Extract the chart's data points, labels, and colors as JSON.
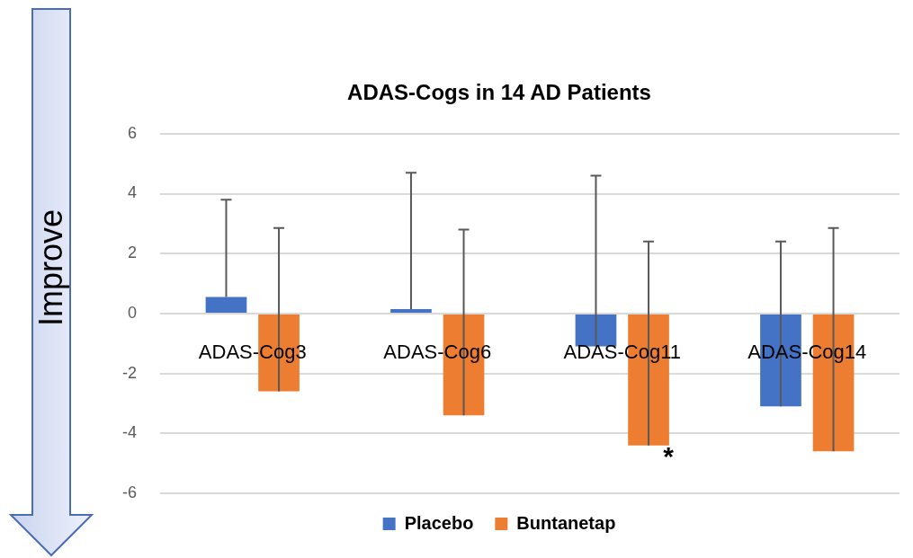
{
  "chart_data": {
    "type": "bar",
    "title": "ADAS-Cogs in 14 AD Patients",
    "categories": [
      "ADAS-Cog3",
      "ADAS-Cog6",
      "ADAS-Cog11",
      "ADAS-Cog14"
    ],
    "series": [
      {
        "name": "Placebo",
        "color": "#4472c4",
        "values": [
          0.55,
          0.15,
          -1.1,
          -3.1
        ],
        "errors": [
          [
            0.55,
            3.8
          ],
          [
            0.15,
            4.7
          ],
          [
            -1.1,
            4.6
          ],
          [
            -3.1,
            2.4
          ]
        ]
      },
      {
        "name": "Buntanetap",
        "color": "#ed7d31",
        "values": [
          -2.6,
          -3.4,
          -4.4,
          -4.6
        ],
        "errors": [
          [
            -2.6,
            2.85
          ],
          [
            -3.4,
            2.8
          ],
          [
            -4.4,
            2.4
          ],
          [
            -4.6,
            2.85
          ]
        ]
      }
    ],
    "ylim": [
      -6,
      6
    ],
    "yticks": [
      -6,
      -4,
      -2,
      0,
      2,
      4,
      6
    ],
    "grid": "y",
    "legend": "bottom",
    "ylabel": "Improve",
    "annotations": [
      "*"
    ]
  }
}
